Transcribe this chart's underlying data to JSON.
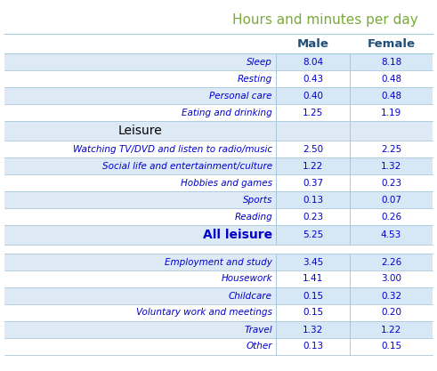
{
  "title": "Hours and minutes per day",
  "title_color": "#7AAA3A",
  "col_headers": [
    "Male",
    "Female"
  ],
  "col_header_color": "#1F4E79",
  "rows": [
    {
      "label": "Sleep",
      "male": "8.04",
      "female": "8.18",
      "type": "data"
    },
    {
      "label": "Resting",
      "male": "0.43",
      "female": "0.48",
      "type": "data"
    },
    {
      "label": "Personal care",
      "male": "0.40",
      "female": "0.48",
      "type": "data"
    },
    {
      "label": "Eating and drinking",
      "male": "1.25",
      "female": "1.19",
      "type": "data"
    },
    {
      "label": "Leisure",
      "male": "",
      "female": "",
      "type": "header"
    },
    {
      "label": "Watching TV/DVD and listen to radio/music",
      "male": "2.50",
      "female": "2.25",
      "type": "data"
    },
    {
      "label": "Social life and entertainment/culture",
      "male": "1.22",
      "female": "1.32",
      "type": "data"
    },
    {
      "label": "Hobbies and games",
      "male": "0.37",
      "female": "0.23",
      "type": "data"
    },
    {
      "label": "Sports",
      "male": "0.13",
      "female": "0.07",
      "type": "data"
    },
    {
      "label": "Reading",
      "male": "0.23",
      "female": "0.26",
      "type": "data"
    },
    {
      "label": "All leisure",
      "male": "5.25",
      "female": "4.53",
      "type": "subtotal"
    },
    {
      "label": "",
      "male": "",
      "female": "",
      "type": "blank"
    },
    {
      "label": "Employment and study",
      "male": "3.45",
      "female": "2.26",
      "type": "data"
    },
    {
      "label": "Housework",
      "male": "1.41",
      "female": "3.00",
      "type": "data"
    },
    {
      "label": "Childcare",
      "male": "0.15",
      "female": "0.32",
      "type": "data"
    },
    {
      "label": "Voluntary work and meetings",
      "male": "0.15",
      "female": "0.20",
      "type": "data"
    },
    {
      "label": "Travel",
      "male": "1.32",
      "female": "1.22",
      "type": "data"
    },
    {
      "label": "Other",
      "male": "0.13",
      "female": "0.15",
      "type": "data"
    }
  ],
  "bg_light": "#DDEAF5",
  "bg_white": "#FFFFFF",
  "bg_cell": "#D6E8F5",
  "text_blue": "#0000CD",
  "text_header": "#000000",
  "line_color": "#A8C8DC",
  "title_fontsize": 11,
  "header_fontsize": 8,
  "data_fontsize": 7.5,
  "header_row_fontsize": 9.5,
  "subtotal_fontsize": 10
}
